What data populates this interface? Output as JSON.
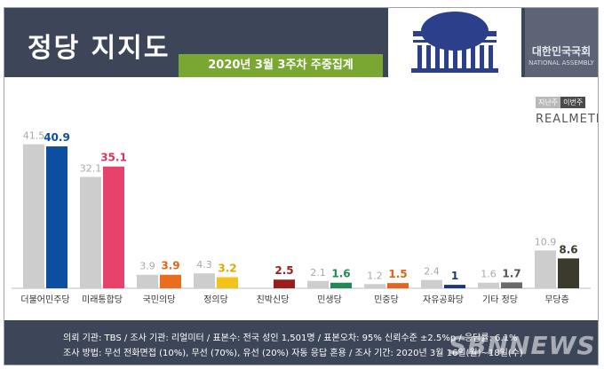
{
  "header": {
    "title": "정당 지지도",
    "subtitle": "2020년 3월 3주차 주중집계",
    "assembly_ko": "대한민국국회",
    "assembly_en": "NATIONAL ASSEMBLY"
  },
  "legend": {
    "prev_label": "지난주",
    "this_label": "이번주"
  },
  "brand": "REALMETER",
  "chart_data": {
    "type": "bar",
    "title": "",
    "xlabel": "",
    "ylabel": "",
    "ylim": [
      0,
      45
    ],
    "grid": false,
    "legend_position": "top-right",
    "categories": [
      "더불어민주당",
      "미래통합당",
      "국민의당",
      "정의당",
      "친박신당",
      "민생당",
      "민중당",
      "자유공화당",
      "기타 정당",
      "무당층"
    ],
    "series": [
      {
        "name": "지난주",
        "values": [
          41.5,
          32.1,
          3.9,
          4.3,
          null,
          2.1,
          1.2,
          2.4,
          1.6,
          10.9
        ]
      },
      {
        "name": "이번주",
        "values": [
          40.9,
          35.1,
          3.9,
          3.2,
          2.5,
          1.6,
          1.5,
          1.0,
          1.7,
          8.6
        ]
      }
    ],
    "prev_color": "#cdcdcd",
    "prev_label_color": "#a8a8a8",
    "current_colors": [
      "#0b4ea2",
      "#e8416a",
      "#ea6c1e",
      "#f3c31a",
      "#9c1c1c",
      "#1f8a58",
      "#e8621b",
      "#183a7a",
      "#6b6b6b",
      "#3c3a2d"
    ],
    "current_label_colors": [
      "#0b4ea2",
      "#d6355f",
      "#e06414",
      "#e0a800",
      "#9c1c1c",
      "#1f8a58",
      "#e06414",
      "#183a7a",
      "#555555",
      "#3c3a2d"
    ]
  },
  "footer": {
    "line1": "의뢰 기관: TBS / 조사 기관: 리얼미터 / 표본수: 전국 성인 1,501명 / 표본오차: 95% 신뢰수준 ±2.5%p / 응답률: 6.1%",
    "line2": "조사 방법: 무선 전화면접 (10%), 무선 (70%), 유선 (20%) 자동 응답 혼용 / 조사 기간: 2020년 3월 16일(월)~18일(수)",
    "watermark": "SBNNEWS"
  }
}
